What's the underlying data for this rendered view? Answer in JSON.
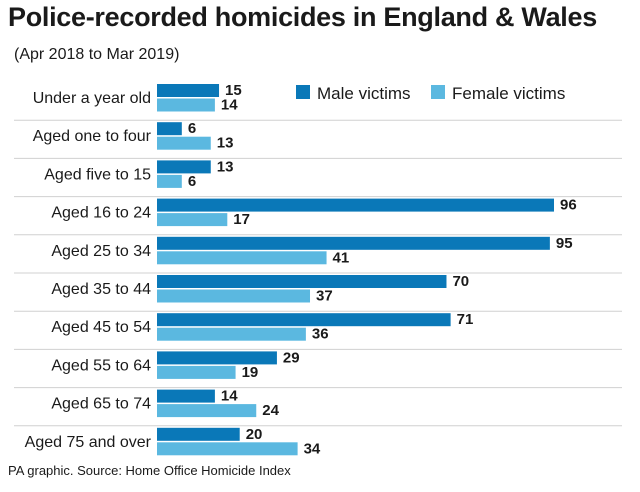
{
  "title": "Police-recorded homicides in England & Wales",
  "subtitle": "(Apr 2018 to Mar 2019)",
  "footer": "PA graphic. Source: Home Office Homicide Index",
  "colors": {
    "male": "#0a78b8",
    "female": "#5bb8e0",
    "separator": "#d0d0d0"
  },
  "chart_data": {
    "type": "bar",
    "orientation": "horizontal",
    "categories": [
      "Under a year old",
      "Aged one to four",
      "Aged five to 15",
      "Aged 16 to 24",
      "Aged 25 to 34",
      "Aged 35 to 44",
      "Aged 45 to 54",
      "Aged 55 to 64",
      "Aged 65 to 74",
      "Aged 75 and over"
    ],
    "series": [
      {
        "name": "Male victims",
        "values": [
          15,
          6,
          13,
          96,
          95,
          70,
          71,
          29,
          14,
          20
        ]
      },
      {
        "name": "Female victims",
        "values": [
          14,
          13,
          6,
          17,
          41,
          37,
          36,
          19,
          24,
          34
        ]
      }
    ],
    "xlim": [
      0,
      96
    ],
    "legend_position": "top-right",
    "grid": false,
    "data_labels": true
  }
}
